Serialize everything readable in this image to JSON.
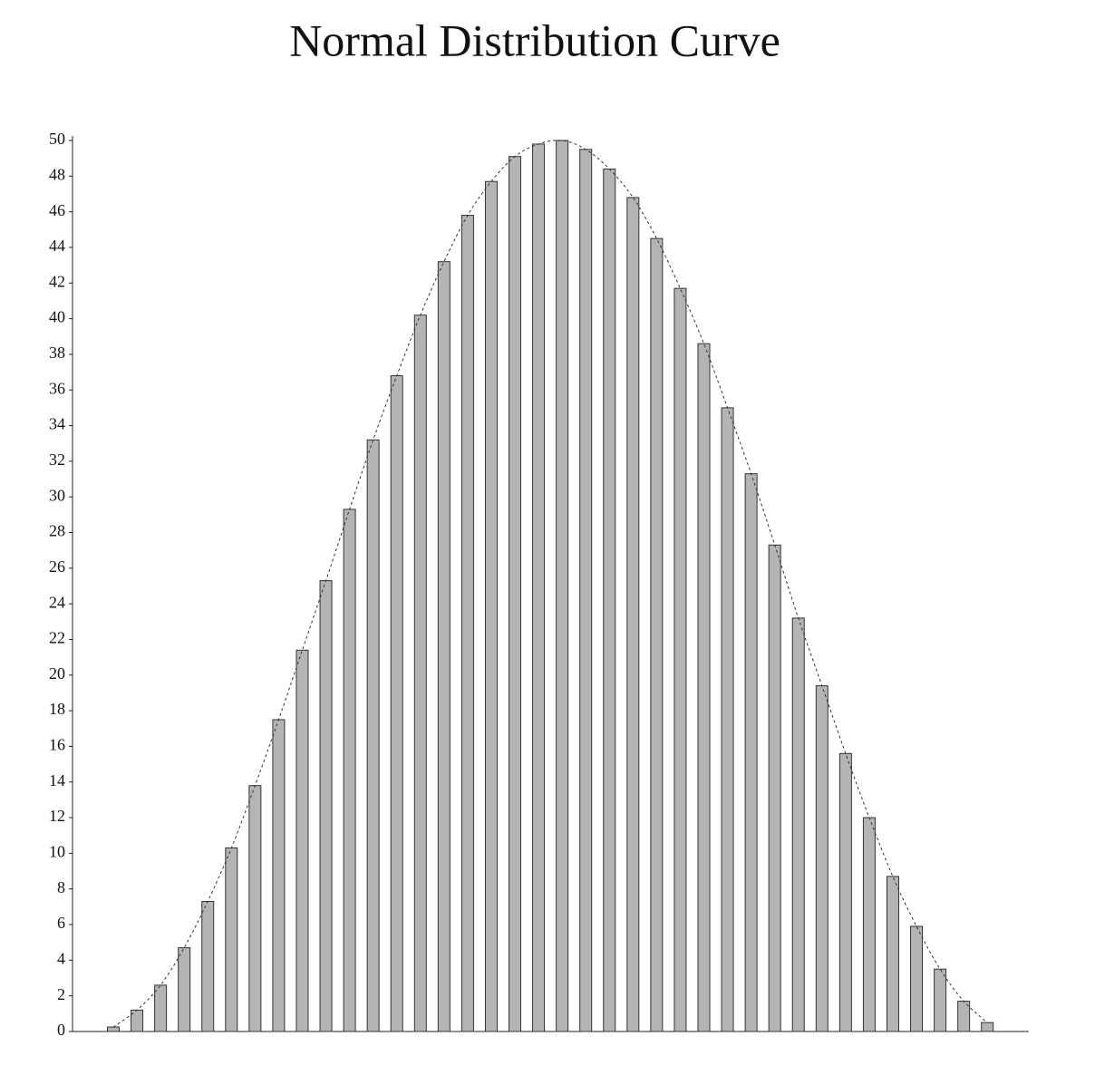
{
  "chart_data": {
    "type": "bar",
    "title": "Normal Distribution Curve",
    "categories": [
      null,
      null,
      null,
      null,
      null,
      null,
      null,
      null,
      null,
      null,
      null,
      null,
      null,
      null,
      null,
      null,
      null,
      null,
      null,
      null,
      null,
      null,
      null,
      null,
      null,
      null,
      null,
      null,
      null,
      null,
      null,
      null,
      null,
      null,
      null,
      null,
      null,
      null
    ],
    "values": [
      0.25,
      1.2,
      2.6,
      4.7,
      7.3,
      10.3,
      13.8,
      17.5,
      21.4,
      25.3,
      29.3,
      33.2,
      36.8,
      40.2,
      43.2,
      45.8,
      47.7,
      49.1,
      49.8,
      50,
      49.5,
      48.4,
      46.8,
      44.5,
      41.7,
      38.6,
      35.0,
      31.3,
      27.3,
      23.2,
      19.4,
      15.6,
      12.0,
      8.7,
      5.9,
      3.5,
      1.7,
      0.5
    ],
    "color": "#b4b4b4",
    "ylim": [
      0,
      50
    ],
    "yticks": [
      0,
      2,
      4,
      6,
      8,
      10,
      12,
      14,
      16,
      18,
      20,
      22,
      24,
      26,
      28,
      30,
      32,
      34,
      36,
      38,
      40,
      42,
      44,
      46,
      48,
      50
    ],
    "grid": false,
    "curve": true
  }
}
